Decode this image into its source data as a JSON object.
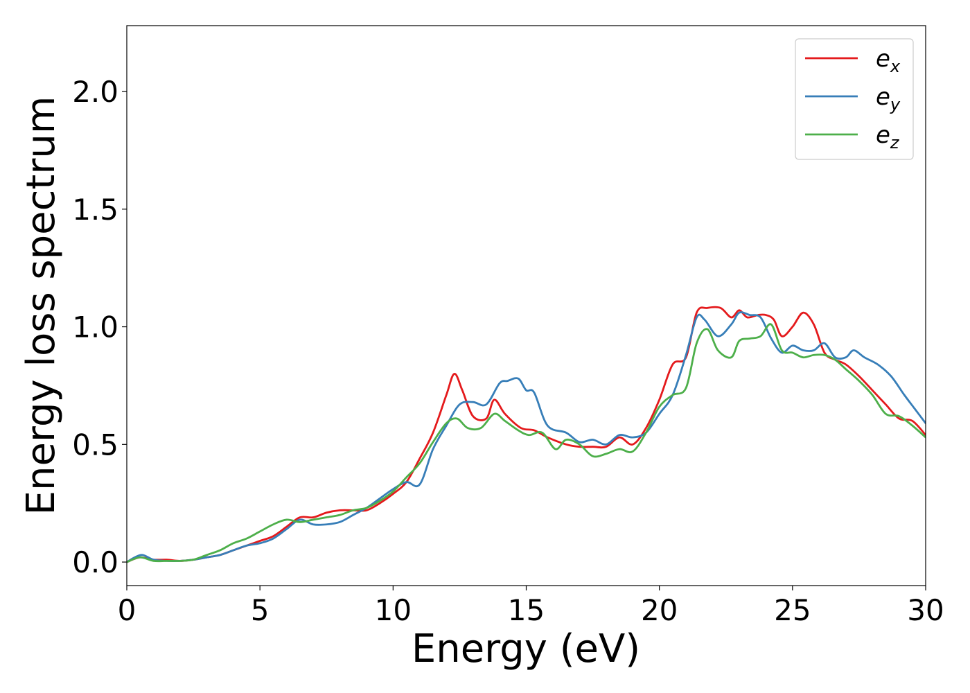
{
  "chart_data": {
    "type": "line",
    "title": "",
    "xlabel": "Energy (eV)",
    "ylabel": "Energy loss spectrum",
    "xlim": [
      0,
      30
    ],
    "ylim": [
      -0.1,
      2.28
    ],
    "xticks": [
      0,
      5,
      10,
      15,
      20,
      25,
      30
    ],
    "xtick_labels": [
      "0",
      "5",
      "10",
      "15",
      "20",
      "25",
      "30"
    ],
    "yticks": [
      0.0,
      0.5,
      1.0,
      1.5,
      2.0
    ],
    "ytick_labels": [
      "0.0",
      "0.5",
      "1.0",
      "1.5",
      "2.0"
    ],
    "grid": false,
    "legend_position": "top-right",
    "series": [
      {
        "name": "e_x",
        "label_main": "e",
        "label_sub": "x",
        "color": "#e41a1c",
        "x": [
          0,
          0.5,
          1,
          1.5,
          2,
          2.5,
          3,
          3.5,
          4,
          4.5,
          5,
          5.5,
          6,
          6.5,
          7,
          7.5,
          8,
          8.5,
          9,
          9.5,
          10,
          10.5,
          11,
          11.5,
          12,
          12.3,
          12.6,
          13,
          13.5,
          13.8,
          14.2,
          14.8,
          15.3,
          15.8,
          16.5,
          17,
          17.5,
          18,
          18.5,
          19,
          19.5,
          20,
          20.5,
          21,
          21.4,
          21.8,
          22.3,
          22.7,
          23,
          23.3,
          23.7,
          24,
          24.3,
          24.6,
          25,
          25.4,
          25.8,
          26.2,
          26.6,
          27,
          27.5,
          28,
          28.5,
          29,
          29.5,
          30
        ],
        "y": [
          0.0,
          0.02,
          0.01,
          0.01,
          0.005,
          0.01,
          0.02,
          0.03,
          0.05,
          0.07,
          0.09,
          0.11,
          0.15,
          0.19,
          0.19,
          0.21,
          0.22,
          0.22,
          0.22,
          0.25,
          0.29,
          0.34,
          0.44,
          0.55,
          0.71,
          0.8,
          0.73,
          0.62,
          0.61,
          0.69,
          0.63,
          0.57,
          0.56,
          0.53,
          0.5,
          0.49,
          0.49,
          0.49,
          0.53,
          0.5,
          0.57,
          0.69,
          0.84,
          0.87,
          1.06,
          1.08,
          1.08,
          1.04,
          1.07,
          1.04,
          1.05,
          1.05,
          1.03,
          0.96,
          1.0,
          1.06,
          1.01,
          0.89,
          0.86,
          0.84,
          0.79,
          0.73,
          0.67,
          0.61,
          0.6,
          0.54
        ]
      },
      {
        "name": "e_y",
        "label_main": "e",
        "label_sub": "y",
        "color": "#377eb8",
        "x": [
          0,
          0.3,
          0.6,
          1,
          1.5,
          2,
          2.5,
          3,
          3.5,
          4,
          4.5,
          5,
          5.5,
          6,
          6.5,
          7,
          7.5,
          8,
          8.5,
          9,
          9.5,
          10,
          10.5,
          11,
          11.5,
          12,
          12.5,
          13,
          13.5,
          14,
          14.3,
          14.7,
          15,
          15.3,
          15.8,
          16.5,
          17,
          17.5,
          18,
          18.5,
          19,
          19.5,
          20,
          20.5,
          21,
          21.4,
          21.7,
          22.2,
          22.7,
          23,
          23.4,
          23.8,
          24.2,
          24.6,
          25,
          25.4,
          25.8,
          26.2,
          26.6,
          27,
          27.3,
          27.7,
          28.2,
          28.7,
          29.2,
          29.6,
          30
        ],
        "y": [
          0.0,
          0.02,
          0.03,
          0.01,
          0.005,
          0.005,
          0.01,
          0.02,
          0.03,
          0.05,
          0.07,
          0.08,
          0.1,
          0.14,
          0.18,
          0.16,
          0.16,
          0.17,
          0.2,
          0.23,
          0.27,
          0.31,
          0.34,
          0.33,
          0.48,
          0.58,
          0.67,
          0.68,
          0.67,
          0.76,
          0.77,
          0.78,
          0.73,
          0.72,
          0.58,
          0.55,
          0.51,
          0.52,
          0.5,
          0.54,
          0.53,
          0.55,
          0.63,
          0.71,
          0.88,
          1.04,
          1.03,
          0.96,
          1.01,
          1.06,
          1.05,
          1.04,
          0.95,
          0.89,
          0.92,
          0.9,
          0.9,
          0.93,
          0.87,
          0.87,
          0.9,
          0.87,
          0.84,
          0.79,
          0.71,
          0.65,
          0.59
        ]
      },
      {
        "name": "e_z",
        "label_main": "e",
        "label_sub": "z",
        "color": "#4daf4a",
        "x": [
          0,
          0.5,
          1,
          1.5,
          2,
          2.5,
          3,
          3.5,
          4,
          4.5,
          5,
          5.5,
          6,
          6.5,
          7,
          7.5,
          8,
          8.5,
          9,
          9.5,
          10,
          10.5,
          11,
          11.5,
          12,
          12.4,
          12.8,
          13.3,
          13.8,
          14.2,
          14.7,
          15.1,
          15.6,
          16.1,
          16.5,
          17,
          17.5,
          18,
          18.5,
          19,
          19.5,
          20,
          20.5,
          21,
          21.4,
          21.8,
          22.2,
          22.7,
          23,
          23.4,
          23.8,
          24.2,
          24.6,
          25,
          25.4,
          25.8,
          26.2,
          26.6,
          27,
          27.5,
          28,
          28.5,
          29,
          29.5,
          30
        ],
        "y": [
          0.0,
          0.02,
          0.005,
          0.005,
          0.005,
          0.01,
          0.03,
          0.05,
          0.08,
          0.1,
          0.13,
          0.16,
          0.18,
          0.17,
          0.18,
          0.19,
          0.2,
          0.22,
          0.23,
          0.26,
          0.3,
          0.36,
          0.42,
          0.51,
          0.59,
          0.61,
          0.57,
          0.57,
          0.63,
          0.6,
          0.56,
          0.54,
          0.55,
          0.48,
          0.52,
          0.5,
          0.45,
          0.46,
          0.48,
          0.47,
          0.55,
          0.66,
          0.71,
          0.74,
          0.93,
          0.99,
          0.9,
          0.87,
          0.94,
          0.95,
          0.96,
          1.01,
          0.9,
          0.89,
          0.87,
          0.88,
          0.88,
          0.86,
          0.82,
          0.77,
          0.71,
          0.63,
          0.62,
          0.58,
          0.53
        ]
      }
    ]
  }
}
